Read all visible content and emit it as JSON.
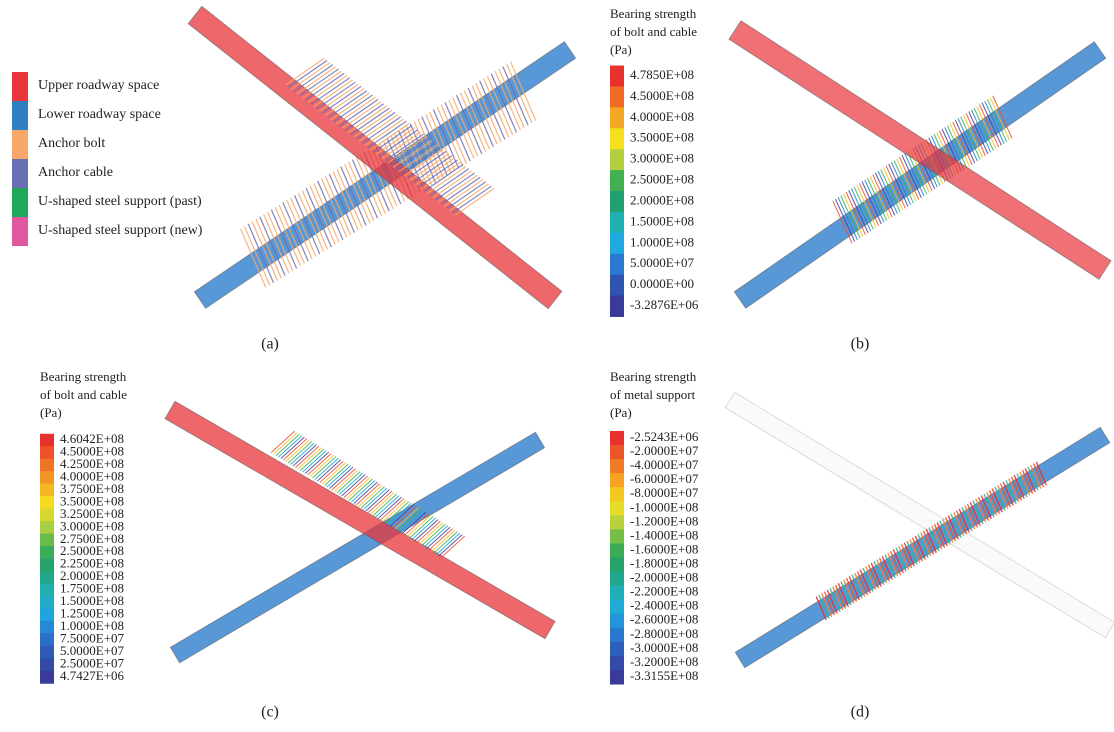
{
  "panels": [
    {
      "label": "(a)",
      "legend": [
        "Upper roadway space",
        "Lower roadway space",
        "Anchor bolt",
        "Anchor cable",
        "U-shaped steel support (past)",
        "U-shaped steel support (new)"
      ]
    },
    {
      "label": "(b)",
      "title": [
        "Bearing strength",
        "of bolt and cable",
        "(Pa)"
      ],
      "scale": [
        "4.7850E+08",
        "4.5000E+08",
        "4.0000E+08",
        "3.5000E+08",
        "3.0000E+08",
        "2.5000E+08",
        "2.0000E+08",
        "1.5000E+08",
        "1.0000E+08",
        "5.0000E+07",
        "0.0000E+00",
        "-3.2876E+06"
      ]
    },
    {
      "label": "(c)",
      "title": [
        "Bearing strength",
        "of bolt and cable",
        "(Pa)"
      ],
      "scale": [
        "4.6042E+08",
        "4.5000E+08",
        "4.2500E+08",
        "4.0000E+08",
        "3.7500E+08",
        "3.5000E+08",
        "3.2500E+08",
        "3.0000E+08",
        "2.7500E+08",
        "2.5000E+08",
        "2.2500E+08",
        "2.0000E+08",
        "1.7500E+08",
        "1.5000E+08",
        "1.2500E+08",
        "1.0000E+08",
        "7.5000E+07",
        "5.0000E+07",
        "2.5000E+07",
        "4.7427E+06"
      ]
    },
    {
      "label": "(d)",
      "title": [
        "Bearing strength",
        "of metal support",
        "(Pa)"
      ],
      "scale": [
        "-2.5243E+06",
        "-2.0000E+07",
        "-4.0000E+07",
        "-6.0000E+07",
        "-8.0000E+07",
        "-1.0000E+08",
        "-1.2000E+08",
        "-1.4000E+08",
        "-1.6000E+08",
        "-1.8000E+08",
        "-2.0000E+08",
        "-2.2000E+08",
        "-2.4000E+08",
        "-2.6000E+08",
        "-2.8000E+08",
        "-3.0000E+08",
        "-3.2000E+08",
        "-3.3155E+08"
      ]
    }
  ]
}
